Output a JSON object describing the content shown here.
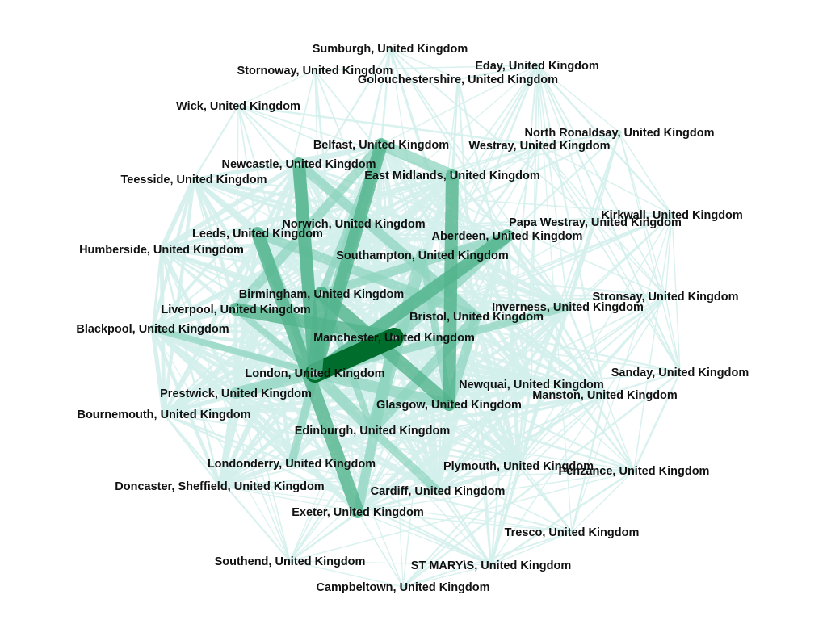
{
  "graph": {
    "nodes": [
      "Sumburgh, United Kingdom",
      "Stornoway, United Kingdom",
      "Eday, United Kingdom",
      "Golouchestershire, United Kingdom",
      "Wick, United Kingdom",
      "North Ronaldsay, United Kingdom",
      "Belfast, United Kingdom",
      "Westray, United Kingdom",
      "Newcastle, United Kingdom",
      "East Midlands, United Kingdom",
      "Teesside, United Kingdom",
      "Kirkwall, United Kingdom",
      "Papa Westray, United Kingdom",
      "Norwich, United Kingdom",
      "Leeds, United Kingdom",
      "Aberdeen, United Kingdom",
      "Humberside, United Kingdom",
      "Southampton, United Kingdom",
      "Stronsay, United Kingdom",
      "Birmingham, United Kingdom",
      "Inverness, United Kingdom",
      "Liverpool, United Kingdom",
      "Bristol, United Kingdom",
      "Blackpool, United Kingdom",
      "Manchester, United Kingdom",
      "Sanday, United Kingdom",
      "London, United Kingdom",
      "Newquai, United Kingdom",
      "Prestwick, United Kingdom",
      "Manston, United Kingdom",
      "Glasgow, United Kingdom",
      "Bournemouth, United Kingdom",
      "Edinburgh, United Kingdom",
      "Londonderry, United Kingdom",
      "Plymouth, United Kingdom",
      "Penzance, United Kingdom",
      "Doncaster, Sheffield, United Kingdom",
      "Cardiff, United Kingdom",
      "Exeter, United Kingdom",
      "Tresco, United Kingdom",
      "Southend, United Kingdom",
      "ST MARY\\S, United Kingdom",
      "Campbeltown, United Kingdom"
    ],
    "colors": {
      "edge_light": "#d4f0ec",
      "edge_mid": "#8fd4bf",
      "edge_strong": "#52b48c",
      "edge_strongest": "#006d2c",
      "label": "#111111"
    }
  }
}
